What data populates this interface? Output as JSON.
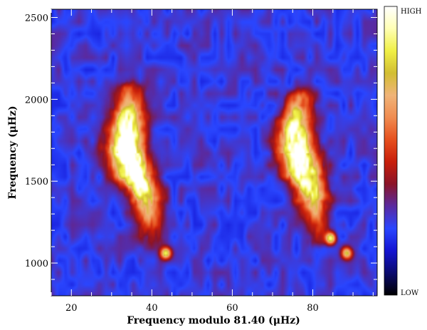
{
  "chart_data": {
    "type": "heatmap",
    "xlabel": "Frequency modulo 81.40 (μHz)",
    "ylabel": "Frequency (μHz)",
    "xlim": [
      15,
      96
    ],
    "ylim": [
      800,
      2550
    ],
    "x_ticks": [
      20,
      40,
      60,
      80
    ],
    "y_ticks": [
      1000,
      1500,
      2000,
      2500
    ],
    "x_tick_labels": [
      "20",
      "40",
      "60",
      "80"
    ],
    "y_tick_labels": [
      "1000",
      "1500",
      "2000",
      "2500"
    ],
    "colorbar": {
      "high_label": "HIGH",
      "low_label": "LOW",
      "stops": [
        "#000000",
        "#0a0a6e",
        "#1414d2",
        "#2a46ff",
        "#5a2aa0",
        "#8a1428",
        "#c81e0a",
        "#e6501e",
        "#f08c50",
        "#f0b478",
        "#d2be32",
        "#f0f046",
        "#ffffb4",
        "#ffffff"
      ]
    },
    "background_level": 0.25,
    "ridges": [
      {
        "points": [
          [
            34.5,
            2050
          ],
          [
            34,
            1900
          ],
          [
            33.5,
            1700
          ],
          [
            35.5,
            1550
          ],
          [
            38.5,
            1400
          ],
          [
            40,
            1150
          ]
        ],
        "peak": 0.95
      },
      {
        "points": [
          [
            76.5,
            2000
          ],
          [
            75.5,
            1850
          ],
          [
            76,
            1700
          ],
          [
            77.5,
            1550
          ],
          [
            80,
            1400
          ],
          [
            81.5,
            1150
          ]
        ],
        "peak": 0.85
      }
    ],
    "spots": [
      {
        "x": 43.5,
        "y": 1060,
        "level": 0.6
      },
      {
        "x": 84.5,
        "y": 1150,
        "level": 0.55
      },
      {
        "x": 88.5,
        "y": 1060,
        "level": 0.5
      }
    ]
  }
}
